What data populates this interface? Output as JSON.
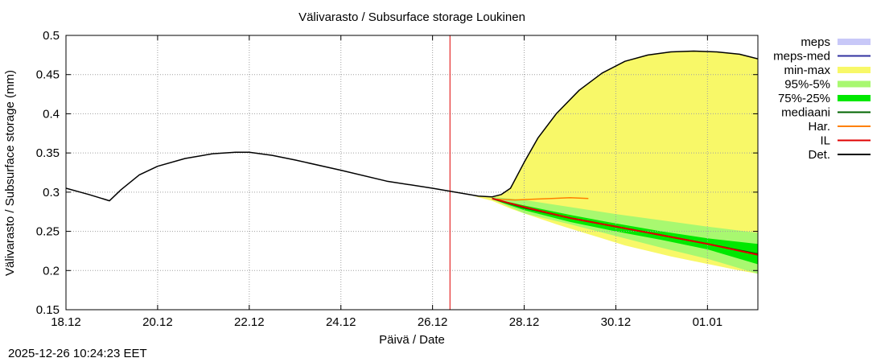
{
  "chart_data": {
    "type": "area",
    "title": "Välivarasto / Subsurface storage  Loukinen",
    "xlabel": "Päivä / Date",
    "ylabel": "Välivarasto / Subsurface storage (mm)",
    "x_unit": "days since 18.12",
    "xlim": [
      0,
      15.1
    ],
    "ylim": [
      0.15,
      0.5
    ],
    "yticks": [
      0.15,
      0.2,
      0.25,
      0.3,
      0.35,
      0.4,
      0.45,
      0.5
    ],
    "ytick_labels": [
      "0.15",
      "0.2",
      "0.25",
      "0.3",
      "0.35",
      "0.4",
      "0.45",
      "0.5"
    ],
    "xticks": [
      0,
      2,
      4,
      6,
      8,
      10,
      12,
      14
    ],
    "xtick_labels": [
      "18.12",
      "20.12",
      "22.12",
      "24.12",
      "26.12",
      "28.12",
      "30.12",
      "01.01"
    ],
    "grid": true,
    "forecast_start_x": 8.38,
    "legend_position": "right",
    "legend": [
      {
        "label": "meps",
        "color": "#c8c8f8",
        "style": "box"
      },
      {
        "label": "meps-med",
        "color": "#3232a0",
        "style": "line"
      },
      {
        "label": "min-max",
        "color": "#f8f868",
        "style": "box"
      },
      {
        "label": "95%-5%",
        "color": "#a8f870",
        "style": "box"
      },
      {
        "label": "75%-25%",
        "color": "#00e800",
        "style": "box"
      },
      {
        "label": "mediaani",
        "color": "#006400",
        "style": "line"
      },
      {
        "label": "Har.",
        "color": "#ff8000",
        "style": "line"
      },
      {
        "label": "IL",
        "color": "#e00000",
        "style": "line"
      },
      {
        "label": "Det.",
        "color": "#000000",
        "style": "line"
      }
    ],
    "series": [
      {
        "name": "Det.",
        "color": "#000000",
        "x": [
          0,
          0.5,
          0.95,
          1.2,
          1.6,
          2.0,
          2.6,
          3.2,
          3.7,
          4.0,
          4.5,
          5.0,
          6.0,
          7.0,
          8.0,
          8.5,
          9.0,
          9.3,
          9.5,
          9.7,
          10.0,
          10.3,
          10.7,
          11.2,
          11.7,
          12.2,
          12.7,
          13.2,
          13.7,
          14.2,
          14.7,
          15.1
        ],
        "y": [
          0.305,
          0.297,
          0.289,
          0.303,
          0.322,
          0.333,
          0.343,
          0.349,
          0.351,
          0.351,
          0.347,
          0.341,
          0.328,
          0.314,
          0.305,
          0.3,
          0.295,
          0.294,
          0.297,
          0.305,
          0.338,
          0.369,
          0.4,
          0.43,
          0.452,
          0.467,
          0.475,
          0.479,
          0.48,
          0.479,
          0.476,
          0.47
        ]
      },
      {
        "name": "min-max",
        "color": "#f8f868",
        "x": [
          8.9,
          9.3,
          9.5,
          9.7,
          10.0,
          10.3,
          10.7,
          11.2,
          11.7,
          12.2,
          12.7,
          13.2,
          13.7,
          14.2,
          14.7,
          15.1
        ],
        "upper": [
          0.295,
          0.294,
          0.297,
          0.305,
          0.338,
          0.369,
          0.4,
          0.43,
          0.452,
          0.467,
          0.475,
          0.479,
          0.48,
          0.479,
          0.476,
          0.47
        ],
        "lower": [
          0.295,
          0.289,
          0.284,
          0.279,
          0.273,
          0.267,
          0.259,
          0.25,
          0.241,
          0.232,
          0.225,
          0.218,
          0.212,
          0.206,
          0.2,
          0.196
        ]
      },
      {
        "name": "95%-5%",
        "color": "#a8f870",
        "x": [
          9.3,
          10.0,
          11.0,
          12.0,
          13.0,
          14.0,
          15.1
        ],
        "upper": [
          0.294,
          0.29,
          0.281,
          0.272,
          0.264,
          0.256,
          0.248
        ],
        "lower": [
          0.291,
          0.273,
          0.259,
          0.244,
          0.229,
          0.215,
          0.196
        ]
      },
      {
        "name": "75%-25%",
        "color": "#00e800",
        "x": [
          9.3,
          10.0,
          11.0,
          12.0,
          13.0,
          14.0,
          15.1
        ],
        "upper": [
          0.292,
          0.283,
          0.271,
          0.26,
          0.25,
          0.241,
          0.234
        ],
        "lower": [
          0.291,
          0.277,
          0.262,
          0.25,
          0.239,
          0.227,
          0.208
        ]
      },
      {
        "name": "mediaani",
        "color": "#006400",
        "x": [
          9.3,
          10.0,
          11.0,
          12.0,
          13.0,
          14.0,
          15.1
        ],
        "y": [
          0.292,
          0.28,
          0.267,
          0.256,
          0.245,
          0.234,
          0.221
        ]
      },
      {
        "name": "IL",
        "color": "#e00000",
        "x": [
          9.3,
          10.0,
          11.0,
          12.0,
          13.0,
          14.0,
          15.1
        ],
        "y": [
          0.292,
          0.281,
          0.267,
          0.256,
          0.245,
          0.234,
          0.22
        ]
      },
      {
        "name": "Har.",
        "color": "#ff8000",
        "x": [
          9.4,
          9.8,
          10.2,
          10.6,
          11.0,
          11.4
        ],
        "y": [
          0.291,
          0.29,
          0.291,
          0.292,
          0.293,
          0.292
        ]
      }
    ]
  },
  "footer": {
    "timestamp": "2025-12-26 10:24:23 EET"
  }
}
